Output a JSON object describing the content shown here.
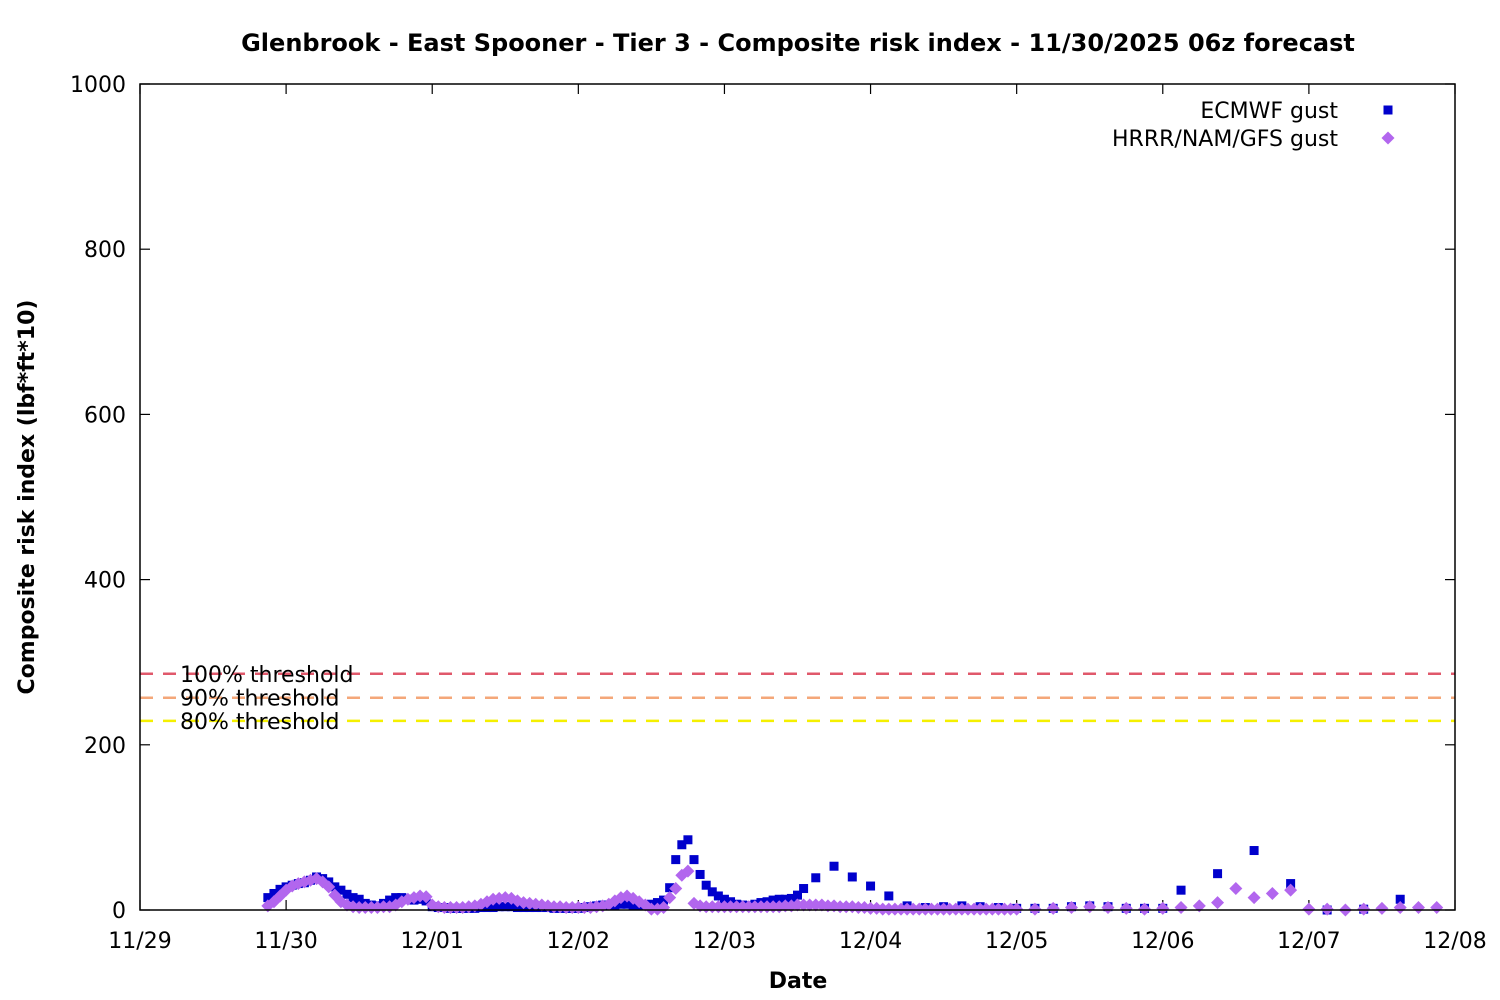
{
  "chart_data": {
    "type": "scatter",
    "title": "Glenbrook - East Spooner - Tier 3 - Composite risk index - 11/30/2025 06z forecast",
    "xlabel": "Date",
    "ylabel": "Composite risk index (lbf*ft*10)",
    "ylim": [
      0,
      1000
    ],
    "xlim": [
      "11/29 00:00",
      "12/08 00:00"
    ],
    "x_tick_labels": [
      "11/29",
      "11/30",
      "12/01",
      "12/02",
      "12/03",
      "12/04",
      "12/05",
      "12/06",
      "12/07",
      "12/08"
    ],
    "y_tick_labels": [
      "0",
      "200",
      "400",
      "600",
      "800",
      "1000"
    ],
    "y_ticks": [
      0,
      200,
      400,
      600,
      800,
      1000
    ],
    "grid": false,
    "legend_position": "top-right",
    "thresholds": [
      {
        "label": "100% threshold",
        "value": 286,
        "color": "#e0586b"
      },
      {
        "label": "90% threshold",
        "value": 257,
        "color": "#f4a779"
      },
      {
        "label": "80% threshold",
        "value": 229,
        "color": "#f5f000"
      }
    ],
    "series": [
      {
        "name": "ECMWF gust",
        "color": "#0000cc",
        "marker": "square",
        "points": [
          [
            "11/29 21:00",
            15
          ],
          [
            "11/29 22:00",
            20
          ],
          [
            "11/29 23:00",
            25
          ],
          [
            "11/30 00:00",
            28
          ],
          [
            "11/30 01:00",
            30
          ],
          [
            "11/30 02:00",
            32
          ],
          [
            "11/30 03:00",
            33
          ],
          [
            "11/30 04:00",
            36
          ],
          [
            "11/30 05:00",
            40
          ],
          [
            "11/30 06:00",
            38
          ],
          [
            "11/30 07:00",
            34
          ],
          [
            "11/30 08:00",
            28
          ],
          [
            "11/30 09:00",
            24
          ],
          [
            "11/30 10:00",
            19
          ],
          [
            "11/30 11:00",
            15
          ],
          [
            "11/30 12:00",
            13
          ],
          [
            "11/30 13:00",
            8
          ],
          [
            "11/30 14:00",
            6
          ],
          [
            "11/30 15:00",
            5
          ],
          [
            "11/30 16:00",
            8
          ],
          [
            "11/30 17:00",
            12
          ],
          [
            "11/30 18:00",
            15
          ],
          [
            "11/30 19:00",
            15
          ],
          [
            "11/30 20:00",
            13
          ],
          [
            "11/30 21:00",
            12
          ],
          [
            "11/30 22:00",
            13
          ],
          [
            "11/30 23:00",
            11
          ],
          [
            "12/01 00:00",
            4
          ],
          [
            "12/01 01:00",
            3
          ],
          [
            "12/01 02:00",
            3
          ],
          [
            "12/01 03:00",
            2
          ],
          [
            "12/01 04:00",
            2
          ],
          [
            "12/01 05:00",
            2
          ],
          [
            "12/01 06:00",
            2
          ],
          [
            "12/01 07:00",
            2
          ],
          [
            "12/01 08:00",
            3
          ],
          [
            "12/01 09:00",
            3
          ],
          [
            "12/01 10:00",
            3
          ],
          [
            "12/01 11:00",
            4
          ],
          [
            "12/01 12:00",
            4
          ],
          [
            "12/01 13:00",
            4
          ],
          [
            "12/01 14:00",
            3
          ],
          [
            "12/01 15:00",
            3
          ],
          [
            "12/01 16:00",
            3
          ],
          [
            "12/01 17:00",
            3
          ],
          [
            "12/01 18:00",
            3
          ],
          [
            "12/01 19:00",
            3
          ],
          [
            "12/01 20:00",
            2
          ],
          [
            "12/01 21:00",
            2
          ],
          [
            "12/01 22:00",
            2
          ],
          [
            "12/01 23:00",
            2
          ],
          [
            "12/02 00:00",
            2
          ],
          [
            "12/02 01:00",
            3
          ],
          [
            "12/02 02:00",
            4
          ],
          [
            "12/02 03:00",
            5
          ],
          [
            "12/02 04:00",
            6
          ],
          [
            "12/02 05:00",
            6
          ],
          [
            "12/02 06:00",
            6
          ],
          [
            "12/02 07:00",
            7
          ],
          [
            "12/02 08:00",
            7
          ],
          [
            "12/02 09:00",
            6
          ],
          [
            "12/02 10:00",
            6
          ],
          [
            "12/02 11:00",
            5
          ],
          [
            "12/02 12:00",
            7
          ],
          [
            "12/02 13:00",
            9
          ],
          [
            "12/02 14:00",
            12
          ],
          [
            "12/02 15:00",
            27
          ],
          [
            "12/02 16:00",
            61
          ],
          [
            "12/02 17:00",
            79
          ],
          [
            "12/02 18:00",
            85
          ],
          [
            "12/02 19:00",
            61
          ],
          [
            "12/02 20:00",
            43
          ],
          [
            "12/02 21:00",
            30
          ],
          [
            "12/02 22:00",
            22
          ],
          [
            "12/02 23:00",
            17
          ],
          [
            "12/03 00:00",
            13
          ],
          [
            "12/03 01:00",
            10
          ],
          [
            "12/03 02:00",
            7
          ],
          [
            "12/03 03:00",
            6
          ],
          [
            "12/03 04:00",
            5
          ],
          [
            "12/03 05:00",
            7
          ],
          [
            "12/03 06:00",
            9
          ],
          [
            "12/03 07:00",
            10
          ],
          [
            "12/03 08:00",
            12
          ],
          [
            "12/03 09:00",
            13
          ],
          [
            "12/03 10:00",
            13
          ],
          [
            "12/03 11:00",
            14
          ],
          [
            "12/03 12:00",
            18
          ],
          [
            "12/03 13:00",
            26
          ],
          [
            "12/03 15:00",
            39
          ],
          [
            "12/03 18:00",
            53
          ],
          [
            "12/03 21:00",
            40
          ],
          [
            "12/04 00:00",
            29
          ],
          [
            "12/04 03:00",
            17
          ],
          [
            "12/04 06:00",
            5
          ],
          [
            "12/04 09:00",
            3
          ],
          [
            "12/04 12:00",
            4
          ],
          [
            "12/04 15:00",
            5
          ],
          [
            "12/04 18:00",
            4
          ],
          [
            "12/04 21:00",
            3
          ],
          [
            "12/05 00:00",
            2
          ],
          [
            "12/05 03:00",
            2
          ],
          [
            "12/05 06:00",
            2
          ],
          [
            "12/05 09:00",
            4
          ],
          [
            "12/05 12:00",
            5
          ],
          [
            "12/05 15:00",
            4
          ],
          [
            "12/05 18:00",
            2
          ],
          [
            "12/05 21:00",
            2
          ],
          [
            "12/06 00:00",
            2
          ],
          [
            "12/06 03:00",
            24
          ],
          [
            "12/06 09:00",
            44
          ],
          [
            "12/06 15:00",
            72
          ],
          [
            "12/06 21:00",
            32
          ],
          [
            "12/07 03:00",
            0
          ],
          [
            "12/07 09:00",
            1
          ],
          [
            "12/07 15:00",
            13
          ]
        ]
      },
      {
        "name": "HRRR/NAM/GFS gust",
        "color": "#b266ee",
        "marker": "diamond",
        "points": [
          [
            "11/29 21:00",
            5
          ],
          [
            "11/29 22:00",
            10
          ],
          [
            "11/29 23:00",
            17
          ],
          [
            "11/30 00:00",
            24
          ],
          [
            "11/30 01:00",
            29
          ],
          [
            "11/30 02:00",
            32
          ],
          [
            "11/30 03:00",
            34
          ],
          [
            "11/30 04:00",
            36
          ],
          [
            "11/30 05:00",
            38
          ],
          [
            "11/30 06:00",
            34
          ],
          [
            "11/30 07:00",
            28
          ],
          [
            "11/30 08:00",
            18
          ],
          [
            "11/30 09:00",
            10
          ],
          [
            "11/30 10:00",
            6
          ],
          [
            "11/30 11:00",
            4
          ],
          [
            "11/30 12:00",
            3
          ],
          [
            "11/30 13:00",
            3
          ],
          [
            "11/30 14:00",
            3
          ],
          [
            "11/30 15:00",
            3
          ],
          [
            "11/30 16:00",
            4
          ],
          [
            "11/30 17:00",
            4
          ],
          [
            "11/30 18:00",
            6
          ],
          [
            "11/30 19:00",
            10
          ],
          [
            "11/30 20:00",
            13
          ],
          [
            "11/30 21:00",
            15
          ],
          [
            "11/30 22:00",
            17
          ],
          [
            "11/30 23:00",
            16
          ],
          [
            "12/01 00:00",
            6
          ],
          [
            "12/01 01:00",
            4
          ],
          [
            "12/01 02:00",
            3
          ],
          [
            "12/01 03:00",
            3
          ],
          [
            "12/01 04:00",
            3
          ],
          [
            "12/01 05:00",
            3
          ],
          [
            "12/01 06:00",
            4
          ],
          [
            "12/01 07:00",
            5
          ],
          [
            "12/01 08:00",
            7
          ],
          [
            "12/01 09:00",
            10
          ],
          [
            "12/01 10:00",
            13
          ],
          [
            "12/01 11:00",
            14
          ],
          [
            "12/01 12:00",
            15
          ],
          [
            "12/01 13:00",
            14
          ],
          [
            "12/01 14:00",
            11
          ],
          [
            "12/01 15:00",
            9
          ],
          [
            "12/01 16:00",
            8
          ],
          [
            "12/01 17:00",
            7
          ],
          [
            "12/01 18:00",
            6
          ],
          [
            "12/01 19:00",
            5
          ],
          [
            "12/01 20:00",
            4
          ],
          [
            "12/01 21:00",
            4
          ],
          [
            "12/01 22:00",
            3
          ],
          [
            "12/01 23:00",
            3
          ],
          [
            "12/02 00:00",
            3
          ],
          [
            "12/02 01:00",
            3
          ],
          [
            "12/02 02:00",
            3
          ],
          [
            "12/02 03:00",
            4
          ],
          [
            "12/02 04:00",
            5
          ],
          [
            "12/02 05:00",
            7
          ],
          [
            "12/02 06:00",
            11
          ],
          [
            "12/02 07:00",
            15
          ],
          [
            "12/02 08:00",
            17
          ],
          [
            "12/02 09:00",
            14
          ],
          [
            "12/02 10:00",
            10
          ],
          [
            "12/02 11:00",
            6
          ],
          [
            "12/02 12:00",
            1
          ],
          [
            "12/02 13:00",
            1
          ],
          [
            "12/02 14:00",
            3
          ],
          [
            "12/02 15:00",
            15
          ],
          [
            "12/02 16:00",
            26
          ],
          [
            "12/02 17:00",
            42
          ],
          [
            "12/02 18:00",
            47
          ],
          [
            "12/02 19:00",
            8
          ],
          [
            "12/02 20:00",
            5
          ],
          [
            "12/02 21:00",
            4
          ],
          [
            "12/02 22:00",
            4
          ],
          [
            "12/02 23:00",
            4
          ],
          [
            "12/03 00:00",
            4
          ],
          [
            "12/03 01:00",
            4
          ],
          [
            "12/03 02:00",
            4
          ],
          [
            "12/03 03:00",
            4
          ],
          [
            "12/03 04:00",
            4
          ],
          [
            "12/03 05:00",
            4
          ],
          [
            "12/03 06:00",
            4
          ],
          [
            "12/03 07:00",
            4
          ],
          [
            "12/03 08:00",
            4
          ],
          [
            "12/03 09:00",
            4
          ],
          [
            "12/03 10:00",
            5
          ],
          [
            "12/03 11:00",
            5
          ],
          [
            "12/03 12:00",
            6
          ],
          [
            "12/03 13:00",
            6
          ],
          [
            "12/03 14:00",
            6
          ],
          [
            "12/03 15:00",
            6
          ],
          [
            "12/03 16:00",
            6
          ],
          [
            "12/03 17:00",
            5
          ],
          [
            "12/03 18:00",
            5
          ],
          [
            "12/03 19:00",
            4
          ],
          [
            "12/03 20:00",
            4
          ],
          [
            "12/03 21:00",
            4
          ],
          [
            "12/03 22:00",
            3
          ],
          [
            "12/03 23:00",
            3
          ],
          [
            "12/04 00:00",
            2
          ],
          [
            "12/04 01:00",
            2
          ],
          [
            "12/04 02:00",
            1
          ],
          [
            "12/04 03:00",
            1
          ],
          [
            "12/04 04:00",
            1
          ],
          [
            "12/04 05:00",
            1
          ],
          [
            "12/04 06:00",
            1
          ],
          [
            "12/04 07:00",
            1
          ],
          [
            "12/04 08:00",
            1
          ],
          [
            "12/04 09:00",
            1
          ],
          [
            "12/04 10:00",
            1
          ],
          [
            "12/04 11:00",
            1
          ],
          [
            "12/04 12:00",
            1
          ],
          [
            "12/04 13:00",
            1
          ],
          [
            "12/04 14:00",
            1
          ],
          [
            "12/04 15:00",
            1
          ],
          [
            "12/04 16:00",
            1
          ],
          [
            "12/04 17:00",
            1
          ],
          [
            "12/04 18:00",
            1
          ],
          [
            "12/04 19:00",
            1
          ],
          [
            "12/04 20:00",
            1
          ],
          [
            "12/04 21:00",
            1
          ],
          [
            "12/04 22:00",
            1
          ],
          [
            "12/04 23:00",
            1
          ],
          [
            "12/05 00:00",
            1
          ],
          [
            "12/05 03:00",
            1
          ],
          [
            "12/05 06:00",
            2
          ],
          [
            "12/05 09:00",
            3
          ],
          [
            "12/05 12:00",
            4
          ],
          [
            "12/05 15:00",
            3
          ],
          [
            "12/05 18:00",
            2
          ],
          [
            "12/05 21:00",
            1
          ],
          [
            "12/06 00:00",
            2
          ],
          [
            "12/06 03:00",
            3
          ],
          [
            "12/06 06:00",
            5
          ],
          [
            "12/06 09:00",
            9
          ],
          [
            "12/06 12:00",
            26
          ],
          [
            "12/06 15:00",
            15
          ],
          [
            "12/06 18:00",
            20
          ],
          [
            "12/06 21:00",
            24
          ],
          [
            "12/07 00:00",
            1
          ],
          [
            "12/07 03:00",
            1
          ],
          [
            "12/07 06:00",
            0
          ],
          [
            "12/07 09:00",
            1
          ],
          [
            "12/07 12:00",
            2
          ],
          [
            "12/07 15:00",
            3
          ],
          [
            "12/07 18:00",
            3
          ],
          [
            "12/07 21:00",
            3
          ]
        ]
      }
    ]
  }
}
